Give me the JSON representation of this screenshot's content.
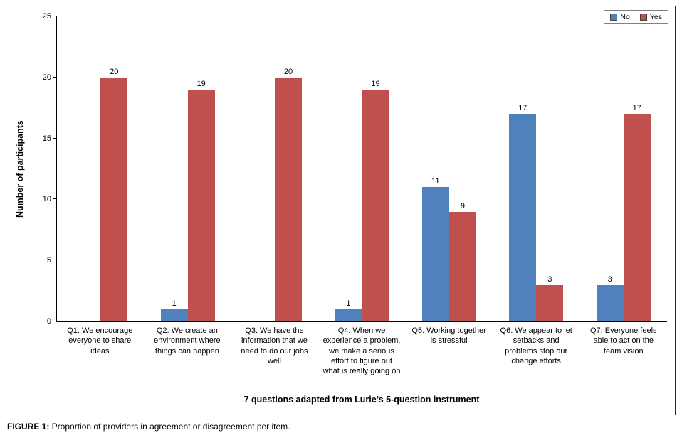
{
  "figure": {
    "caption_label": "FIGURE 1:",
    "caption_text": " Proportion of providers in agreement or disagreement per item."
  },
  "chart_data": {
    "type": "bar",
    "title": "",
    "xlabel": "7 questions adapted from Lurie’s 5-question instrument",
    "ylabel": "Number of participants",
    "ylim": [
      0,
      25
    ],
    "yticks": [
      0,
      5,
      10,
      15,
      20,
      25
    ],
    "grid": false,
    "legend_position": "top-right",
    "categories": [
      "Q1: We encourage everyone to share ideas",
      "Q2: We create an environment where things can happen",
      "Q3: We have the information that we need to do our jobs well",
      "Q4: When we experience a problem, we make a serious effort to figure out what is really going on",
      "Q5: Working together is stressful",
      "Q6: We appear to let setbacks and problems stop our change efforts",
      "Q7: Everyone feels able to act on the team vision"
    ],
    "series": [
      {
        "name": "No",
        "color": "#4F81BD",
        "values": [
          0,
          1,
          0,
          1,
          11,
          17,
          3
        ]
      },
      {
        "name": "Yes",
        "color": "#C0504D",
        "values": [
          20,
          19,
          20,
          19,
          9,
          3,
          17
        ]
      }
    ]
  }
}
